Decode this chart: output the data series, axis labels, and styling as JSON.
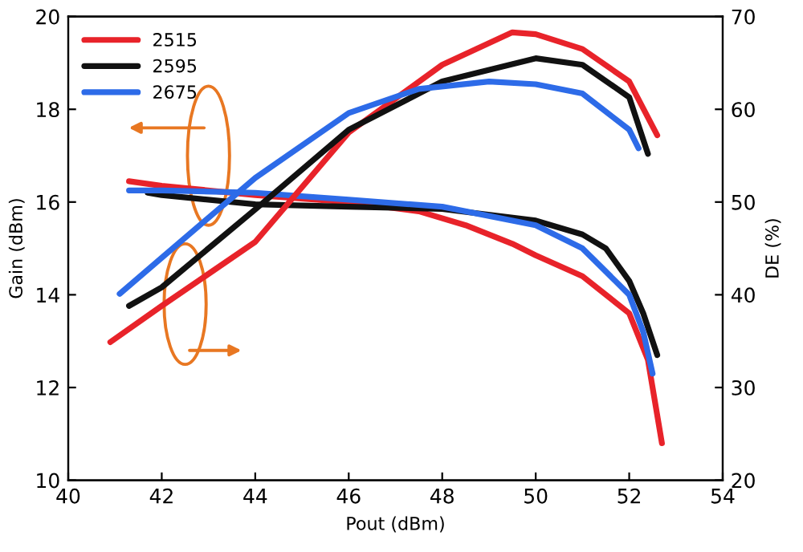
{
  "chart_data": {
    "type": "line",
    "xlabel": "Pout (dBm)",
    "ylabel": "Gain (dBm)",
    "y2label": "DE (%)",
    "xlim": [
      40,
      54
    ],
    "xticks": [
      40,
      42,
      44,
      46,
      48,
      50,
      52,
      54
    ],
    "ylim": [
      10,
      20
    ],
    "yticks": [
      10,
      12,
      14,
      16,
      18,
      20
    ],
    "y2lim": [
      20,
      70
    ],
    "y2ticks": [
      20,
      30,
      40,
      50,
      60,
      70
    ],
    "legend": "top left",
    "grid": false,
    "line_style": "solid",
    "marker": "none",
    "series": [
      {
        "name": "2515",
        "color": "#e8232a",
        "x": [
          41.3,
          42,
          44,
          46,
          47.5,
          48.5,
          49.5,
          50,
          51,
          52,
          52.4,
          52.7
        ],
        "values": [
          16.45,
          16.35,
          16.15,
          16.0,
          15.8,
          15.5,
          15.1,
          14.85,
          14.4,
          13.6,
          12.6,
          10.8
        ]
      },
      {
        "name": "2595",
        "color": "#111111",
        "x": [
          41.7,
          42,
          44,
          46,
          48,
          50,
          51,
          51.5,
          52,
          52.3,
          52.6
        ],
        "values": [
          16.2,
          16.15,
          15.95,
          15.9,
          15.85,
          15.6,
          15.3,
          15.0,
          14.3,
          13.6,
          12.7
        ]
      },
      {
        "name": "2675",
        "color": "#2d6be8",
        "x": [
          41.3,
          42,
          44,
          46,
          48,
          50,
          51,
          52,
          52.3,
          52.5
        ],
        "values": [
          16.25,
          16.25,
          16.2,
          16.05,
          15.9,
          15.5,
          15.0,
          14.0,
          13.2,
          12.3
        ]
      },
      {
        "color": "#e8232a",
        "axis": "y2",
        "x": [
          40.9,
          42,
          44,
          46,
          48,
          49.5,
          50,
          51,
          52,
          52.6
        ],
        "values": [
          34.9,
          38.8,
          45.7,
          57.5,
          64.8,
          68.3,
          68.1,
          66.5,
          63.0,
          57.2
        ]
      },
      {
        "color": "#111111",
        "axis": "y2",
        "x": [
          41.3,
          42,
          44,
          46,
          48,
          50,
          51,
          52,
          52.4
        ],
        "values": [
          38.8,
          40.8,
          49.2,
          57.8,
          63.0,
          65.5,
          64.8,
          61.3,
          55.2
        ]
      },
      {
        "color": "#2d6be8",
        "axis": "y2",
        "x": [
          41.1,
          42,
          44,
          46,
          47.5,
          49,
          50,
          51,
          52,
          52.2
        ],
        "values": [
          40.1,
          44.0,
          52.6,
          59.6,
          62.2,
          63.0,
          62.7,
          61.7,
          57.8,
          55.8
        ]
      }
    ]
  }
}
